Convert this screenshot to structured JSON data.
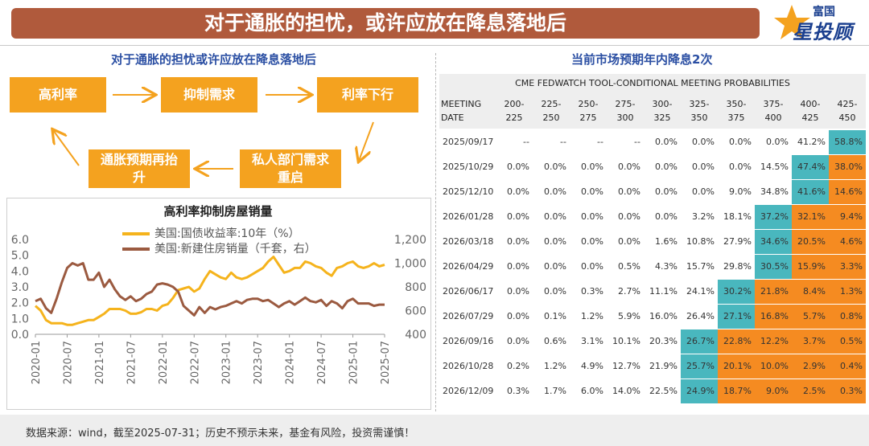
{
  "banner_title": "对于通胀的担忧，或许应放在降息落地后",
  "logo": {
    "top": "富国",
    "main": "星投顾"
  },
  "left_title": "对于通胀的担忧或许应放在降息落地后",
  "right_title": "当前市场预期年内降息2次",
  "flow": {
    "box1": "高利率",
    "box2": "抑制需求",
    "box3": "利率下行",
    "box4": "私人部门需求重启",
    "box5": "通胀预期再抬升"
  },
  "footer": "数据来源：wind，截至2025-07-31；历史不预示未来，基金有风险，投资需谨慎！",
  "colors": {
    "banner": "#b05a3c",
    "box": "#f4a21f",
    "yield_line": "#f5b31c",
    "sales_line": "#9b5a40",
    "teal": "#49b7be",
    "orange": "#f58b21"
  },
  "chart_data": [
    {
      "type": "line",
      "title": "高利率抑制房屋销量",
      "x_ticks": [
        "2020-01",
        "2020-07",
        "2021-01",
        "2021-07",
        "2022-01",
        "2022-07",
        "2023-01",
        "2023-07",
        "2024-01",
        "2024-07",
        "2025-01",
        "2025-07"
      ],
      "left_axis": {
        "ticks": [
          "0.0",
          "1.0",
          "2.0",
          "3.0",
          "4.0",
          "5.0",
          "6.0"
        ],
        "ylim": [
          0,
          6
        ]
      },
      "right_axis": {
        "ticks": [
          "400",
          "600",
          "800",
          "1,000",
          "1,200"
        ],
        "ylim": [
          400,
          1200
        ]
      },
      "grid": false,
      "legend_position": "top",
      "series": [
        {
          "name": "美国:国债收益率:10年（%）",
          "axis": "left",
          "x": [
            "2020-01",
            "2020-02",
            "2020-03",
            "2020-04",
            "2020-05",
            "2020-06",
            "2020-07",
            "2020-08",
            "2020-09",
            "2020-10",
            "2020-11",
            "2020-12",
            "2021-01",
            "2021-02",
            "2021-03",
            "2021-04",
            "2021-05",
            "2021-06",
            "2021-07",
            "2021-08",
            "2021-09",
            "2021-10",
            "2021-11",
            "2021-12",
            "2022-01",
            "2022-02",
            "2022-03",
            "2022-04",
            "2022-05",
            "2022-06",
            "2022-07",
            "2022-08",
            "2022-09",
            "2022-10",
            "2022-11",
            "2022-12",
            "2023-01",
            "2023-02",
            "2023-03",
            "2023-04",
            "2023-05",
            "2023-06",
            "2023-07",
            "2023-08",
            "2023-09",
            "2023-10",
            "2023-11",
            "2023-12",
            "2024-01",
            "2024-02",
            "2024-03",
            "2024-04",
            "2024-05",
            "2024-06",
            "2024-07",
            "2024-08",
            "2024-09",
            "2024-10",
            "2024-11",
            "2024-12",
            "2025-01",
            "2025-02",
            "2025-03",
            "2025-04",
            "2025-05",
            "2025-06",
            "2025-07"
          ],
          "y": [
            1.8,
            1.5,
            0.9,
            0.7,
            0.7,
            0.7,
            0.6,
            0.6,
            0.7,
            0.8,
            0.9,
            0.9,
            1.1,
            1.3,
            1.6,
            1.6,
            1.6,
            1.5,
            1.3,
            1.3,
            1.4,
            1.6,
            1.6,
            1.5,
            1.8,
            1.9,
            2.3,
            2.8,
            2.9,
            3.0,
            2.7,
            2.9,
            3.5,
            4.0,
            3.8,
            3.6,
            3.5,
            3.9,
            3.6,
            3.5,
            3.6,
            3.8,
            4.0,
            4.2,
            4.6,
            4.9,
            4.4,
            3.9,
            4.0,
            4.2,
            4.2,
            4.6,
            4.5,
            4.3,
            4.2,
            3.9,
            3.7,
            4.2,
            4.3,
            4.5,
            4.6,
            4.3,
            4.2,
            4.3,
            4.5,
            4.3,
            4.4
          ]
        },
        {
          "name": "美国:新建住房销量（千套，右）",
          "axis": "right",
          "x": [
            "2020-01",
            "2020-02",
            "2020-03",
            "2020-04",
            "2020-05",
            "2020-06",
            "2020-07",
            "2020-08",
            "2020-09",
            "2020-10",
            "2020-11",
            "2020-12",
            "2021-01",
            "2021-02",
            "2021-03",
            "2021-04",
            "2021-05",
            "2021-06",
            "2021-07",
            "2021-08",
            "2021-09",
            "2021-10",
            "2021-11",
            "2021-12",
            "2022-01",
            "2022-02",
            "2022-03",
            "2022-04",
            "2022-05",
            "2022-06",
            "2022-07",
            "2022-08",
            "2022-09",
            "2022-10",
            "2022-11",
            "2022-12",
            "2023-01",
            "2023-02",
            "2023-03",
            "2023-04",
            "2023-05",
            "2023-06",
            "2023-07",
            "2023-08",
            "2023-09",
            "2023-10",
            "2023-11",
            "2023-12",
            "2024-01",
            "2024-02",
            "2024-03",
            "2024-04",
            "2024-05",
            "2024-06",
            "2024-07",
            "2024-08",
            "2024-09",
            "2024-10",
            "2024-11",
            "2024-12",
            "2025-01",
            "2025-02",
            "2025-03",
            "2025-04",
            "2025-05",
            "2025-06",
            "2025-07"
          ],
          "y": [
            680,
            700,
            620,
            580,
            700,
            840,
            960,
            1000,
            980,
            1000,
            860,
            860,
            920,
            800,
            860,
            780,
            720,
            690,
            720,
            680,
            700,
            740,
            760,
            820,
            830,
            820,
            800,
            760,
            640,
            600,
            560,
            630,
            580,
            630,
            610,
            630,
            640,
            660,
            680,
            660,
            690,
            700,
            700,
            680,
            690,
            660,
            630,
            660,
            680,
            650,
            680,
            710,
            680,
            670,
            690,
            640,
            680,
            660,
            620,
            680,
            700,
            660,
            660,
            660,
            640,
            650,
            650
          ]
        }
      ]
    },
    {
      "type": "table",
      "title": "CME FEDWATCH TOOL-CONDITIONAL MEETING PROBABILITIES",
      "date_header": "MEETING DATE",
      "columns": [
        "200-225",
        "225-250",
        "250-275",
        "275-300",
        "300-325",
        "325-350",
        "350-375",
        "375-400",
        "400-425",
        "425-450"
      ],
      "rows": [
        {
          "date": "2025/09/17",
          "values": [
            "--",
            "--",
            "--",
            "--",
            "0.0%",
            "0.0%",
            "0.0%",
            "0.0%",
            "41.2%",
            "58.8%"
          ],
          "highlight": [
            "",
            "",
            "",
            "",
            "",
            "",
            "",
            "",
            "",
            "t"
          ]
        },
        {
          "date": "2025/10/29",
          "values": [
            "0.0%",
            "0.0%",
            "0.0%",
            "0.0%",
            "0.0%",
            "0.0%",
            "0.0%",
            "14.5%",
            "47.4%",
            "38.0%"
          ],
          "highlight": [
            "",
            "",
            "",
            "",
            "",
            "",
            "",
            "",
            "t",
            "o"
          ]
        },
        {
          "date": "2025/12/10",
          "values": [
            "0.0%",
            "0.0%",
            "0.0%",
            "0.0%",
            "0.0%",
            "0.0%",
            "9.0%",
            "34.8%",
            "41.6%",
            "14.6%"
          ],
          "highlight": [
            "",
            "",
            "",
            "",
            "",
            "",
            "",
            "",
            "t",
            "o"
          ]
        },
        {
          "date": "2026/01/28",
          "values": [
            "0.0%",
            "0.0%",
            "0.0%",
            "0.0%",
            "0.0%",
            "3.2%",
            "18.1%",
            "37.2%",
            "32.1%",
            "9.4%"
          ],
          "highlight": [
            "",
            "",
            "",
            "",
            "",
            "",
            "",
            "t",
            "o",
            "o"
          ]
        },
        {
          "date": "2026/03/18",
          "values": [
            "0.0%",
            "0.0%",
            "0.0%",
            "0.0%",
            "1.6%",
            "10.8%",
            "27.9%",
            "34.6%",
            "20.5%",
            "4.6%"
          ],
          "highlight": [
            "",
            "",
            "",
            "",
            "",
            "",
            "",
            "t",
            "o",
            "o"
          ]
        },
        {
          "date": "2026/04/29",
          "values": [
            "0.0%",
            "0.0%",
            "0.0%",
            "0.5%",
            "4.3%",
            "15.7%",
            "29.8%",
            "30.5%",
            "15.9%",
            "3.3%"
          ],
          "highlight": [
            "",
            "",
            "",
            "",
            "",
            "",
            "",
            "t",
            "o",
            "o"
          ]
        },
        {
          "date": "2026/06/17",
          "values": [
            "0.0%",
            "0.0%",
            "0.3%",
            "2.7%",
            "11.1%",
            "24.1%",
            "30.2%",
            "21.8%",
            "8.4%",
            "1.3%"
          ],
          "highlight": [
            "",
            "",
            "",
            "",
            "",
            "",
            "t",
            "o",
            "o",
            "o"
          ]
        },
        {
          "date": "2026/07/29",
          "values": [
            "0.0%",
            "0.1%",
            "1.2%",
            "5.9%",
            "16.0%",
            "26.4%",
            "27.1%",
            "16.8%",
            "5.7%",
            "0.8%"
          ],
          "highlight": [
            "",
            "",
            "",
            "",
            "",
            "",
            "t",
            "o",
            "o",
            "o"
          ]
        },
        {
          "date": "2026/09/16",
          "values": [
            "0.0%",
            "0.6%",
            "3.1%",
            "10.1%",
            "20.3%",
            "26.7%",
            "22.8%",
            "12.2%",
            "3.7%",
            "0.5%"
          ],
          "highlight": [
            "",
            "",
            "",
            "",
            "",
            "t",
            "o",
            "o",
            "o",
            "o"
          ]
        },
        {
          "date": "2026/10/28",
          "values": [
            "0.2%",
            "1.2%",
            "4.9%",
            "12.7%",
            "21.9%",
            "25.7%",
            "20.1%",
            "10.0%",
            "2.9%",
            "0.4%"
          ],
          "highlight": [
            "",
            "",
            "",
            "",
            "",
            "t",
            "o",
            "o",
            "o",
            "o"
          ]
        },
        {
          "date": "2026/12/09",
          "values": [
            "0.3%",
            "1.7%",
            "6.0%",
            "14.0%",
            "22.5%",
            "24.9%",
            "18.7%",
            "9.0%",
            "2.5%",
            "0.3%"
          ],
          "highlight": [
            "",
            "",
            "",
            "",
            "",
            "t",
            "o",
            "o",
            "o",
            "o"
          ]
        }
      ]
    }
  ]
}
